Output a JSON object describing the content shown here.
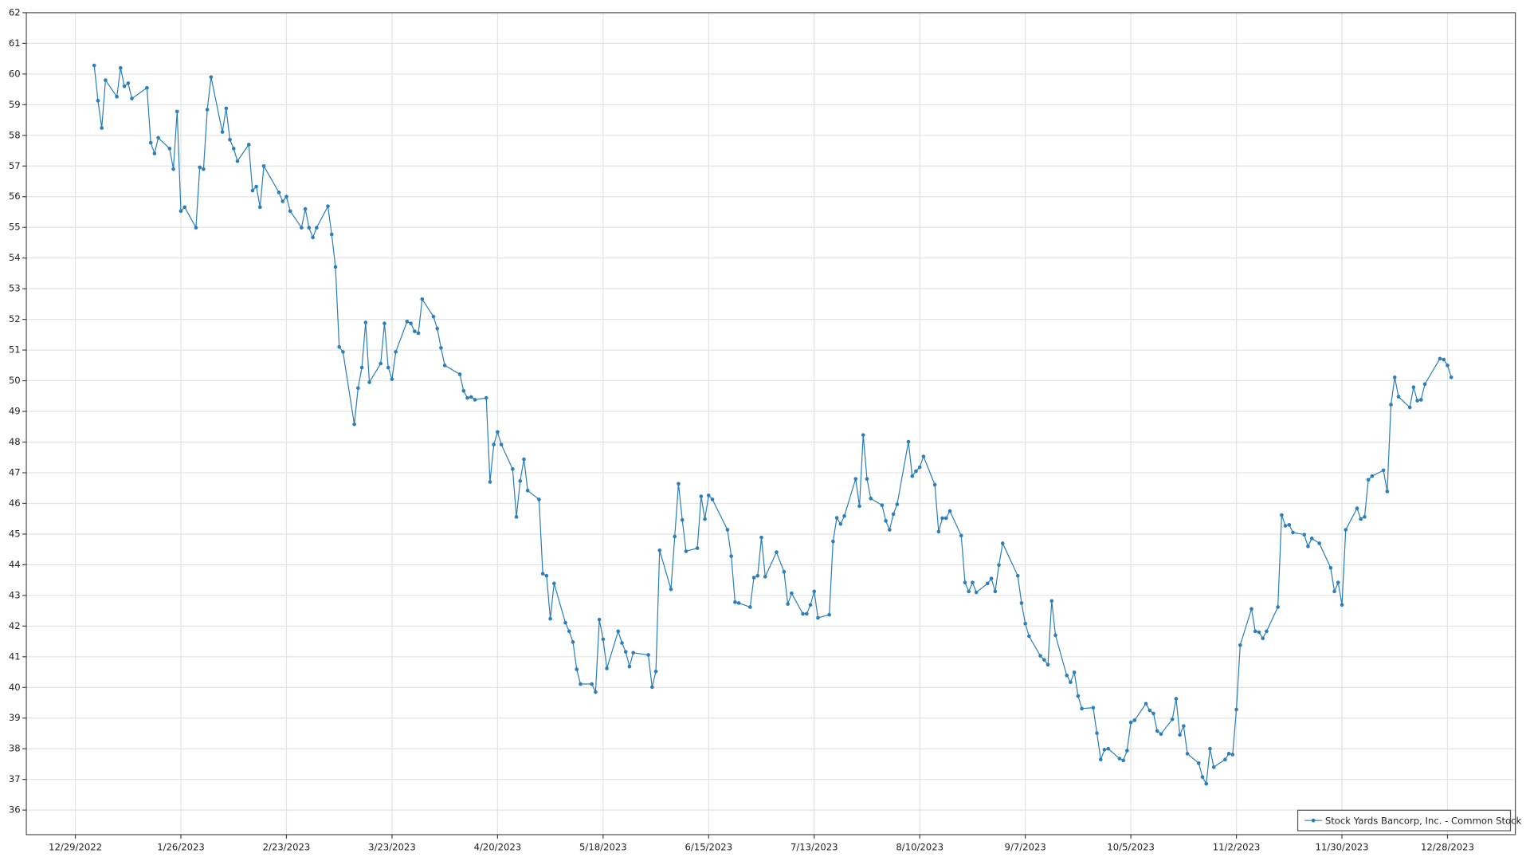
{
  "chart_data": {
    "type": "line",
    "x": [
      "1/3/2023",
      "1/4/2023",
      "1/5/2023",
      "1/6/2023",
      "1/9/2023",
      "1/10/2023",
      "1/11/2023",
      "1/12/2023",
      "1/13/2023",
      "1/17/2023",
      "1/18/2023",
      "1/19/2023",
      "1/20/2023",
      "1/23/2023",
      "1/24/2023",
      "1/25/2023",
      "1/26/2023",
      "1/27/2023",
      "1/30/2023",
      "1/31/2023",
      "2/1/2023",
      "2/2/2023",
      "2/3/2023",
      "2/6/2023",
      "2/7/2023",
      "2/8/2023",
      "2/9/2023",
      "2/10/2023",
      "2/13/2023",
      "2/14/2023",
      "2/15/2023",
      "2/16/2023",
      "2/17/2023",
      "2/21/2023",
      "2/22/2023",
      "2/23/2023",
      "2/24/2023",
      "2/27/2023",
      "2/28/2023",
      "3/1/2023",
      "3/2/2023",
      "3/3/2023",
      "3/6/2023",
      "3/7/2023",
      "3/8/2023",
      "3/9/2023",
      "3/10/2023",
      "3/13/2023",
      "3/14/2023",
      "3/15/2023",
      "3/16/2023",
      "3/17/2023",
      "3/20/2023",
      "3/21/2023",
      "3/22/2023",
      "3/23/2023",
      "3/24/2023",
      "3/27/2023",
      "3/28/2023",
      "3/29/2023",
      "3/30/2023",
      "3/31/2023",
      "4/3/2023",
      "4/4/2023",
      "4/5/2023",
      "4/6/2023",
      "4/10/2023",
      "4/11/2023",
      "4/12/2023",
      "4/13/2023",
      "4/14/2023",
      "4/17/2023",
      "4/18/2023",
      "4/19/2023",
      "4/20/2023",
      "4/21/2023",
      "4/24/2023",
      "4/25/2023",
      "4/26/2023",
      "4/27/2023",
      "4/28/2023",
      "5/1/2023",
      "5/2/2023",
      "5/3/2023",
      "5/4/2023",
      "5/5/2023",
      "5/8/2023",
      "5/9/2023",
      "5/10/2023",
      "5/11/2023",
      "5/12/2023",
      "5/15/2023",
      "5/16/2023",
      "5/17/2023",
      "5/18/2023",
      "5/19/2023",
      "5/22/2023",
      "5/23/2023",
      "5/24/2023",
      "5/25/2023",
      "5/26/2023",
      "5/30/2023",
      "5/31/2023",
      "6/1/2023",
      "6/2/2023",
      "6/5/2023",
      "6/6/2023",
      "6/7/2023",
      "6/8/2023",
      "6/9/2023",
      "6/12/2023",
      "6/13/2023",
      "6/14/2023",
      "6/15/2023",
      "6/16/2023",
      "6/20/2023",
      "6/21/2023",
      "6/22/2023",
      "6/23/2023",
      "6/26/2023",
      "6/27/2023",
      "6/28/2023",
      "6/29/2023",
      "6/30/2023",
      "7/3/2023",
      "7/5/2023",
      "7/6/2023",
      "7/7/2023",
      "7/10/2023",
      "7/11/2023",
      "7/12/2023",
      "7/13/2023",
      "7/14/2023",
      "7/17/2023",
      "7/18/2023",
      "7/19/2023",
      "7/20/2023",
      "7/21/2023",
      "7/24/2023",
      "7/25/2023",
      "7/26/2023",
      "7/27/2023",
      "7/28/2023",
      "7/31/2023",
      "8/1/2023",
      "8/2/2023",
      "8/3/2023",
      "8/4/2023",
      "8/7/2023",
      "8/8/2023",
      "8/9/2023",
      "8/10/2023",
      "8/11/2023",
      "8/14/2023",
      "8/15/2023",
      "8/16/2023",
      "8/17/2023",
      "8/18/2023",
      "8/21/2023",
      "8/22/2023",
      "8/23/2023",
      "8/24/2023",
      "8/25/2023",
      "8/28/2023",
      "8/29/2023",
      "8/30/2023",
      "8/31/2023",
      "9/1/2023",
      "9/5/2023",
      "9/6/2023",
      "9/7/2023",
      "9/8/2023",
      "9/11/2023",
      "9/12/2023",
      "9/13/2023",
      "9/14/2023",
      "9/15/2023",
      "9/18/2023",
      "9/19/2023",
      "9/20/2023",
      "9/21/2023",
      "9/22/2023",
      "9/25/2023",
      "9/26/2023",
      "9/27/2023",
      "9/28/2023",
      "9/29/2023",
      "10/2/2023",
      "10/3/2023",
      "10/4/2023",
      "10/5/2023",
      "10/6/2023",
      "10/9/2023",
      "10/10/2023",
      "10/11/2023",
      "10/12/2023",
      "10/13/2023",
      "10/16/2023",
      "10/17/2023",
      "10/18/2023",
      "10/19/2023",
      "10/20/2023",
      "10/23/2023",
      "10/24/2023",
      "10/25/2023",
      "10/26/2023",
      "10/27/2023",
      "10/30/2023",
      "10/31/2023",
      "11/1/2023",
      "11/2/2023",
      "11/3/2023",
      "11/6/2023",
      "11/7/2023",
      "11/8/2023",
      "11/9/2023",
      "11/10/2023",
      "11/13/2023",
      "11/14/2023",
      "11/15/2023",
      "11/16/2023",
      "11/17/2023",
      "11/20/2023",
      "11/21/2023",
      "11/22/2023",
      "11/24/2023",
      "11/27/2023",
      "11/28/2023",
      "11/29/2023",
      "11/30/2023",
      "12/1/2023",
      "12/4/2023",
      "12/5/2023",
      "12/6/2023",
      "12/7/2023",
      "12/8/2023",
      "12/11/2023",
      "12/12/2023",
      "12/13/2023",
      "12/14/2023",
      "12/15/2023",
      "12/18/2023",
      "12/19/2023",
      "12/20/2023",
      "12/21/2023",
      "12/22/2023",
      "12/26/2023",
      "12/27/2023",
      "12/28/2023",
      "12/29/2023"
    ],
    "series": [
      {
        "name": "Stock Yards Bancorp, Inc. - Common Stock",
        "color": "#2e7fb8",
        "values": [
          60.28,
          59.13,
          58.24,
          59.8,
          59.26,
          60.2,
          59.6,
          59.7,
          59.2,
          59.55,
          57.76,
          57.41,
          57.92,
          57.57,
          56.9,
          58.78,
          55.53,
          55.66,
          54.99,
          56.96,
          56.9,
          58.84,
          59.9,
          58.11,
          58.88,
          57.86,
          57.57,
          57.16,
          57.7,
          56.2,
          56.33,
          55.66,
          57.0,
          56.14,
          55.85,
          56.0,
          55.53,
          54.99,
          55.6,
          54.99,
          54.67,
          54.99,
          55.69,
          54.77,
          53.71,
          51.1,
          50.94,
          48.58,
          49.76,
          50.43,
          51.9,
          49.95,
          50.56,
          51.87,
          50.43,
          50.05,
          50.94,
          51.93,
          51.87,
          51.61,
          51.55,
          52.66,
          52.09,
          51.7,
          51.07,
          50.5,
          50.21,
          49.67,
          49.44,
          49.47,
          49.38,
          49.44,
          46.7,
          47.92,
          48.33,
          47.92,
          47.12,
          45.56,
          46.73,
          47.44,
          46.42,
          46.13,
          43.71,
          43.64,
          42.24,
          43.39,
          42.11,
          41.83,
          41.48,
          40.59,
          40.11,
          40.11,
          39.85,
          42.21,
          41.57,
          40.62,
          41.83,
          41.45,
          41.16,
          40.68,
          41.13,
          41.06,
          40.01,
          40.52,
          44.47,
          43.2,
          44.92,
          46.64,
          45.46,
          44.44,
          44.54,
          46.23,
          45.49,
          46.26,
          46.13,
          45.14,
          44.28,
          42.78,
          42.75,
          42.62,
          43.58,
          43.64,
          44.89,
          43.61,
          44.41,
          43.77,
          42.72,
          43.07,
          42.4,
          42.4,
          42.69,
          43.13,
          42.27,
          42.37,
          44.76,
          45.53,
          45.33,
          45.59,
          46.8,
          45.91,
          48.23,
          46.8,
          46.16,
          45.94,
          45.43,
          45.14,
          45.65,
          45.97,
          48.01,
          46.89,
          47.05,
          47.18,
          47.53,
          46.61,
          45.08,
          45.52,
          45.52,
          45.75,
          44.95,
          43.42,
          43.13,
          43.42,
          43.1,
          43.39,
          43.55,
          43.13,
          43.99,
          44.7,
          43.64,
          42.75,
          42.08,
          41.67,
          41.03,
          40.9,
          40.74,
          42.82,
          41.7,
          40.39,
          40.17,
          40.49,
          39.72,
          39.31,
          39.34,
          38.51,
          37.65,
          37.97,
          38.0,
          37.68,
          37.62,
          37.94,
          38.86,
          38.93,
          39.47,
          39.25,
          39.15,
          38.58,
          38.48,
          38.96,
          39.63,
          38.45,
          38.74,
          37.84,
          37.53,
          37.08,
          36.86,
          38.0,
          37.4,
          37.65,
          37.84,
          37.81,
          39.28,
          41.38,
          42.56,
          41.83,
          41.8,
          41.6,
          41.83,
          42.62,
          45.62,
          45.27,
          45.3,
          45.05,
          44.98,
          44.6,
          44.86,
          44.7,
          43.9,
          43.13,
          43.42,
          42.69,
          45.14,
          45.84,
          45.49,
          45.56,
          46.77,
          46.89,
          47.08,
          46.39,
          49.22,
          50.11,
          49.48,
          49.13,
          49.79,
          49.35,
          49.38,
          49.89,
          50.72,
          50.69,
          50.5,
          50.11
        ]
      }
    ],
    "xlim": [
      "12/16/2022",
      "1/15/2024"
    ],
    "xticks": [
      "12/29/2022",
      "1/26/2023",
      "2/23/2023",
      "3/23/2023",
      "4/20/2023",
      "5/18/2023",
      "6/15/2023",
      "7/13/2023",
      "8/10/2023",
      "9/7/2023",
      "10/5/2023",
      "11/2/2023",
      "11/30/2023",
      "12/28/2023"
    ],
    "ylim": [
      35.2,
      62
    ],
    "yticks": [
      36,
      37,
      38,
      39,
      40,
      41,
      42,
      43,
      44,
      45,
      46,
      47,
      48,
      49,
      50,
      51,
      52,
      53,
      54,
      55,
      56,
      57,
      58,
      59,
      60,
      61,
      62
    ],
    "grid": true,
    "legend": "lower right"
  }
}
